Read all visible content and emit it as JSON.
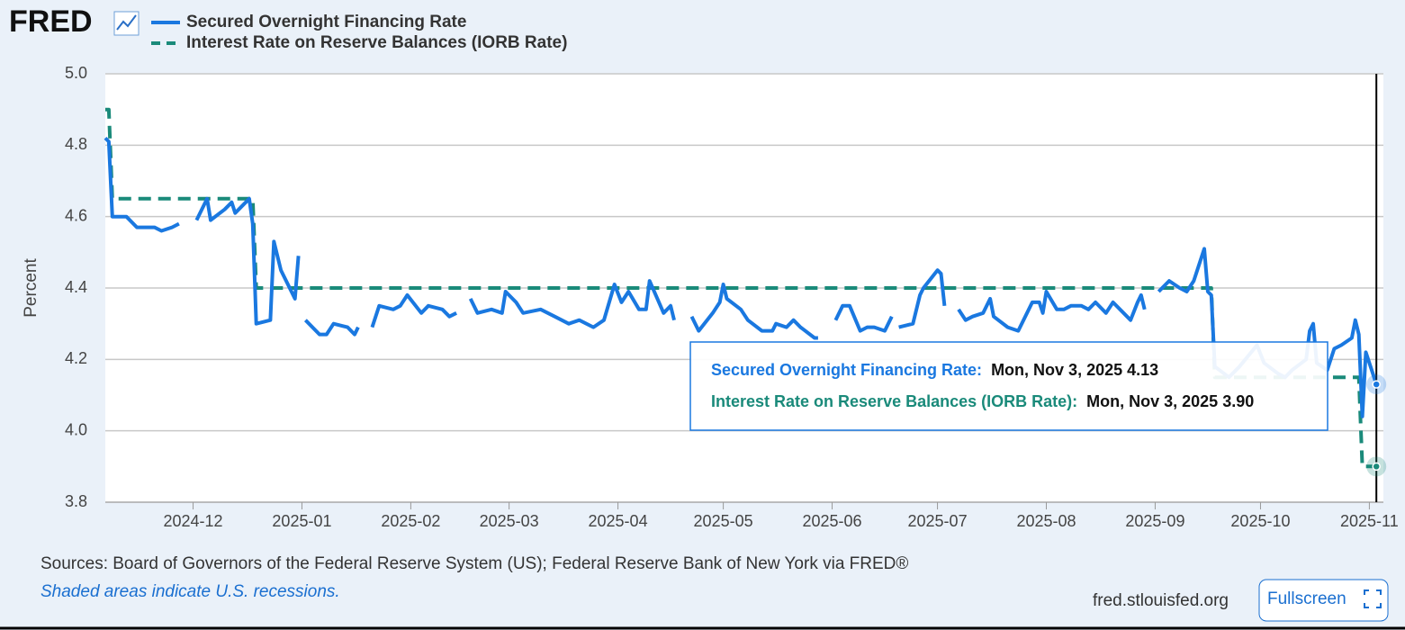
{
  "page": {
    "logo": "FRED",
    "source": "Sources: Board of Governors of the Federal Reserve System (US); Federal Reserve Bank of New York via FRED®",
    "note": "Shaded areas indicate U.S. recessions.",
    "site": "fred.stlouisfed.org",
    "button": "Fullscreen"
  },
  "chart_data": {
    "type": "line",
    "ylabel": "Percent",
    "xlim": [
      "2024-11-06",
      "2025-11-05"
    ],
    "xticks": [
      "2024-12",
      "2025-01",
      "2025-02",
      "2025-03",
      "2025-04",
      "2025-05",
      "2025-06",
      "2025-07",
      "2025-08",
      "2025-09",
      "2025-10",
      "2025-11"
    ],
    "ylim": [
      3.8,
      5.0
    ],
    "yticks": [
      {
        "value": 3.8,
        "label": "3.8"
      },
      {
        "value": 4.0,
        "label": "4.0"
      },
      {
        "value": 4.2,
        "label": "4.2"
      },
      {
        "value": 4.4,
        "label": "4.4"
      },
      {
        "value": 4.6,
        "label": "4.6"
      },
      {
        "value": 4.8,
        "label": "4.8"
      },
      {
        "value": 5.0,
        "label": "5.0"
      }
    ],
    "grid": true,
    "crosshair": "2025-11-03",
    "series": [
      {
        "name": "Secured Overnight Financing Rate",
        "color": "#1a78e0",
        "style": "solid",
        "x": [
          "2024-11-06",
          "2024-11-07",
          "2024-11-08",
          "2024-11-12",
          "2024-11-15",
          "2024-11-20",
          "2024-11-22",
          "2024-11-25",
          "2024-11-27",
          "2024-11-28",
          "2024-12-02",
          "2024-12-05",
          "2024-12-06",
          "2024-12-10",
          "2024-12-12",
          "2024-12-13",
          "2024-12-17",
          "2024-12-18",
          "2024-12-19",
          "2024-12-23",
          "2024-12-24",
          "2024-12-26",
          "2024-12-30",
          "2024-12-31",
          "2025-01-01",
          "2025-01-02",
          "2025-01-06",
          "2025-01-08",
          "2025-01-10",
          "2025-01-14",
          "2025-01-16",
          "2025-01-17",
          "2025-01-20",
          "2025-01-21",
          "2025-01-23",
          "2025-01-27",
          "2025-01-29",
          "2025-01-31",
          "2025-02-04",
          "2025-02-06",
          "2025-02-10",
          "2025-02-12",
          "2025-02-14",
          "2025-02-17",
          "2025-02-18",
          "2025-02-20",
          "2025-02-24",
          "2025-02-27",
          "2025-02-28",
          "2025-03-03",
          "2025-03-05",
          "2025-03-10",
          "2025-03-14",
          "2025-03-18",
          "2025-03-21",
          "2025-03-25",
          "2025-03-28",
          "2025-03-31",
          "2025-04-02",
          "2025-04-04",
          "2025-04-07",
          "2025-04-09",
          "2025-04-10",
          "2025-04-14",
          "2025-04-16",
          "2025-04-17",
          "2025-04-18",
          "2025-04-22",
          "2025-04-24",
          "2025-04-28",
          "2025-04-30",
          "2025-05-01",
          "2025-05-02",
          "2025-05-06",
          "2025-05-08",
          "2025-05-12",
          "2025-05-15",
          "2025-05-16",
          "2025-05-19",
          "2025-05-21",
          "2025-05-23",
          "2025-05-27",
          "2025-05-28",
          "2025-05-30",
          "2025-06-02",
          "2025-06-04",
          "2025-06-06",
          "2025-06-09",
          "2025-06-11",
          "2025-06-13",
          "2025-06-16",
          "2025-06-18",
          "2025-06-19",
          "2025-06-20",
          "2025-06-24",
          "2025-06-26",
          "2025-06-27",
          "2025-07-01",
          "2025-07-02",
          "2025-07-03",
          "2025-07-04",
          "2025-07-07",
          "2025-07-09",
          "2025-07-11",
          "2025-07-14",
          "2025-07-16",
          "2025-07-17",
          "2025-07-21",
          "2025-07-24",
          "2025-07-28",
          "2025-07-30",
          "2025-07-31",
          "2025-08-01",
          "2025-08-04",
          "2025-08-06",
          "2025-08-08",
          "2025-08-11",
          "2025-08-13",
          "2025-08-15",
          "2025-08-18",
          "2025-08-20",
          "2025-08-22",
          "2025-08-25",
          "2025-08-27",
          "2025-08-28",
          "2025-08-29",
          "2025-09-01",
          "2025-09-02",
          "2025-09-03",
          "2025-09-05",
          "2025-09-08",
          "2025-09-10",
          "2025-09-12",
          "2025-09-15",
          "2025-09-16",
          "2025-09-17",
          "2025-09-18",
          "2025-09-22",
          "2025-09-25",
          "2025-09-30",
          "2025-10-02",
          "2025-10-06",
          "2025-10-08",
          "2025-10-10",
          "2025-10-14",
          "2025-10-15",
          "2025-10-16",
          "2025-10-17",
          "2025-10-20",
          "2025-10-22",
          "2025-10-24",
          "2025-10-27",
          "2025-10-28",
          "2025-10-29",
          "2025-10-30",
          "2025-10-31",
          "2025-11-03"
        ],
        "values": [
          4.82,
          4.81,
          4.6,
          4.6,
          4.57,
          4.57,
          4.56,
          4.57,
          4.58,
          null,
          4.59,
          4.65,
          4.59,
          4.62,
          4.64,
          4.61,
          4.65,
          4.58,
          4.3,
          4.31,
          4.53,
          4.45,
          4.37,
          4.49,
          null,
          4.31,
          4.27,
          4.27,
          4.3,
          4.29,
          4.27,
          4.29,
          null,
          4.29,
          4.35,
          4.34,
          4.35,
          4.38,
          4.33,
          4.35,
          4.34,
          4.32,
          4.33,
          null,
          4.37,
          4.33,
          4.34,
          4.33,
          4.39,
          4.36,
          4.33,
          4.34,
          4.32,
          4.3,
          4.31,
          4.29,
          4.31,
          4.41,
          4.36,
          4.39,
          4.34,
          4.34,
          4.42,
          4.33,
          4.35,
          4.31,
          null,
          4.32,
          4.28,
          4.33,
          4.36,
          4.41,
          4.37,
          4.34,
          4.31,
          4.28,
          4.28,
          4.3,
          4.29,
          4.31,
          4.29,
          4.26,
          4.26,
          null,
          4.31,
          4.35,
          4.35,
          4.28,
          4.29,
          4.29,
          4.28,
          4.32,
          null,
          4.29,
          4.3,
          4.38,
          4.4,
          4.45,
          4.44,
          4.35,
          null,
          4.34,
          4.31,
          4.32,
          4.33,
          4.37,
          4.32,
          4.29,
          4.28,
          4.36,
          4.36,
          4.33,
          4.39,
          4.34,
          4.34,
          4.35,
          4.35,
          4.34,
          4.36,
          4.33,
          4.36,
          4.34,
          4.31,
          4.36,
          4.38,
          4.34,
          null,
          4.39,
          4.4,
          4.42,
          4.4,
          4.39,
          4.42,
          4.51,
          4.39,
          4.38,
          4.18,
          4.15,
          4.18,
          4.24,
          4.19,
          4.16,
          4.15,
          4.17,
          4.2,
          4.28,
          4.3,
          4.19,
          4.17,
          4.23,
          4.24,
          4.26,
          4.31,
          4.27,
          4.04,
          4.22,
          4.13
        ]
      },
      {
        "name": "Interest Rate on Reserve Balances (IORB Rate)",
        "color": "#1a8a7a",
        "style": "dashed",
        "x": [
          "2024-11-06",
          "2024-11-07",
          "2024-11-08",
          "2024-12-18",
          "2024-12-19",
          "2025-09-17",
          "2025-09-18",
          "2025-10-29",
          "2025-10-30",
          "2025-11-03"
        ],
        "values": [
          4.9,
          4.9,
          4.65,
          4.65,
          4.4,
          4.4,
          4.15,
          4.15,
          3.9,
          3.9
        ]
      }
    ],
    "tooltip": [
      {
        "label": "Secured Overnight Financing Rate:",
        "text": "Mon, Nov 3, 2025 4.13"
      },
      {
        "label": "Interest Rate on Reserve Balances (IORB Rate):",
        "text": "Mon, Nov 3, 2025 3.90"
      }
    ]
  }
}
